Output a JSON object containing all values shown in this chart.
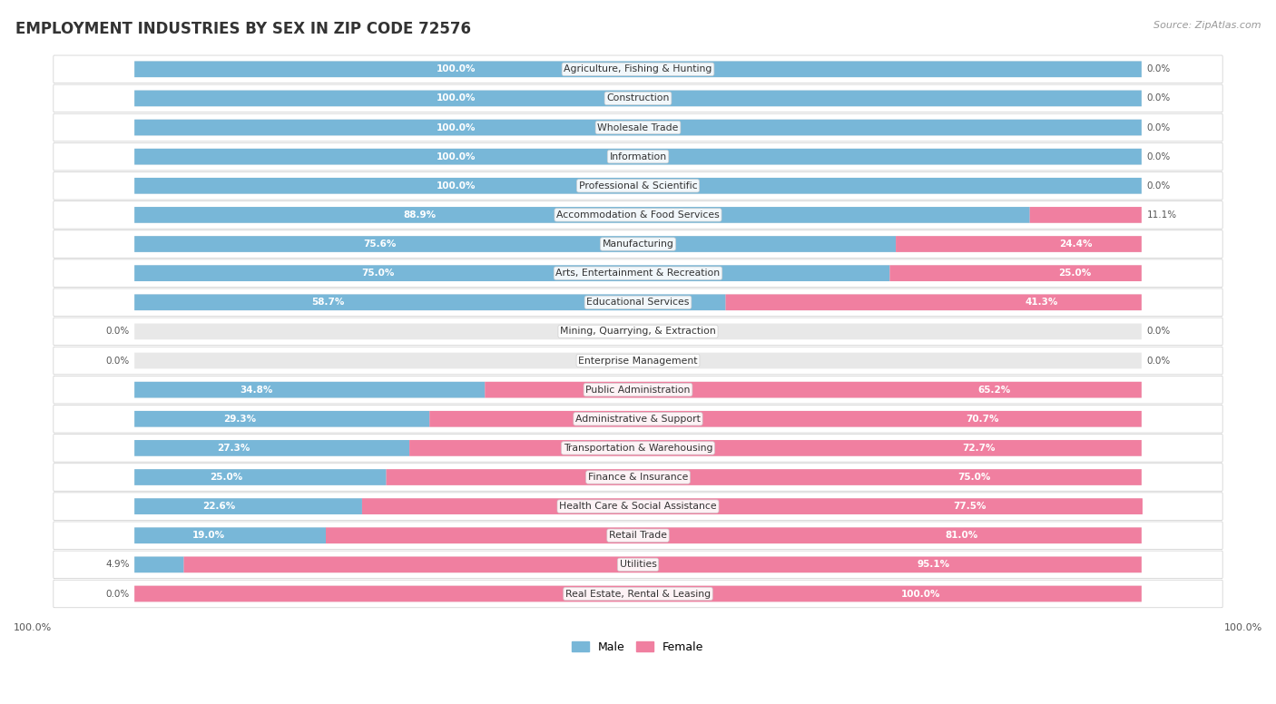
{
  "title": "EMPLOYMENT INDUSTRIES BY SEX IN ZIP CODE 72576",
  "source": "Source: ZipAtlas.com",
  "male_color": "#78b7d8",
  "female_color": "#f07fa0",
  "background_color": "#ffffff",
  "row_bg_color": "#f0f0f0",
  "categories": [
    "Agriculture, Fishing & Hunting",
    "Construction",
    "Wholesale Trade",
    "Information",
    "Professional & Scientific",
    "Accommodation & Food Services",
    "Manufacturing",
    "Arts, Entertainment & Recreation",
    "Educational Services",
    "Mining, Quarrying, & Extraction",
    "Enterprise Management",
    "Public Administration",
    "Administrative & Support",
    "Transportation & Warehousing",
    "Finance & Insurance",
    "Health Care & Social Assistance",
    "Retail Trade",
    "Utilities",
    "Real Estate, Rental & Leasing"
  ],
  "male_pct": [
    100.0,
    100.0,
    100.0,
    100.0,
    100.0,
    88.9,
    75.6,
    75.0,
    58.7,
    0.0,
    0.0,
    34.8,
    29.3,
    27.3,
    25.0,
    22.6,
    19.0,
    4.9,
    0.0
  ],
  "female_pct": [
    0.0,
    0.0,
    0.0,
    0.0,
    0.0,
    11.1,
    24.4,
    25.0,
    41.3,
    0.0,
    0.0,
    65.2,
    70.7,
    72.7,
    75.0,
    77.5,
    81.0,
    95.1,
    100.0
  ]
}
